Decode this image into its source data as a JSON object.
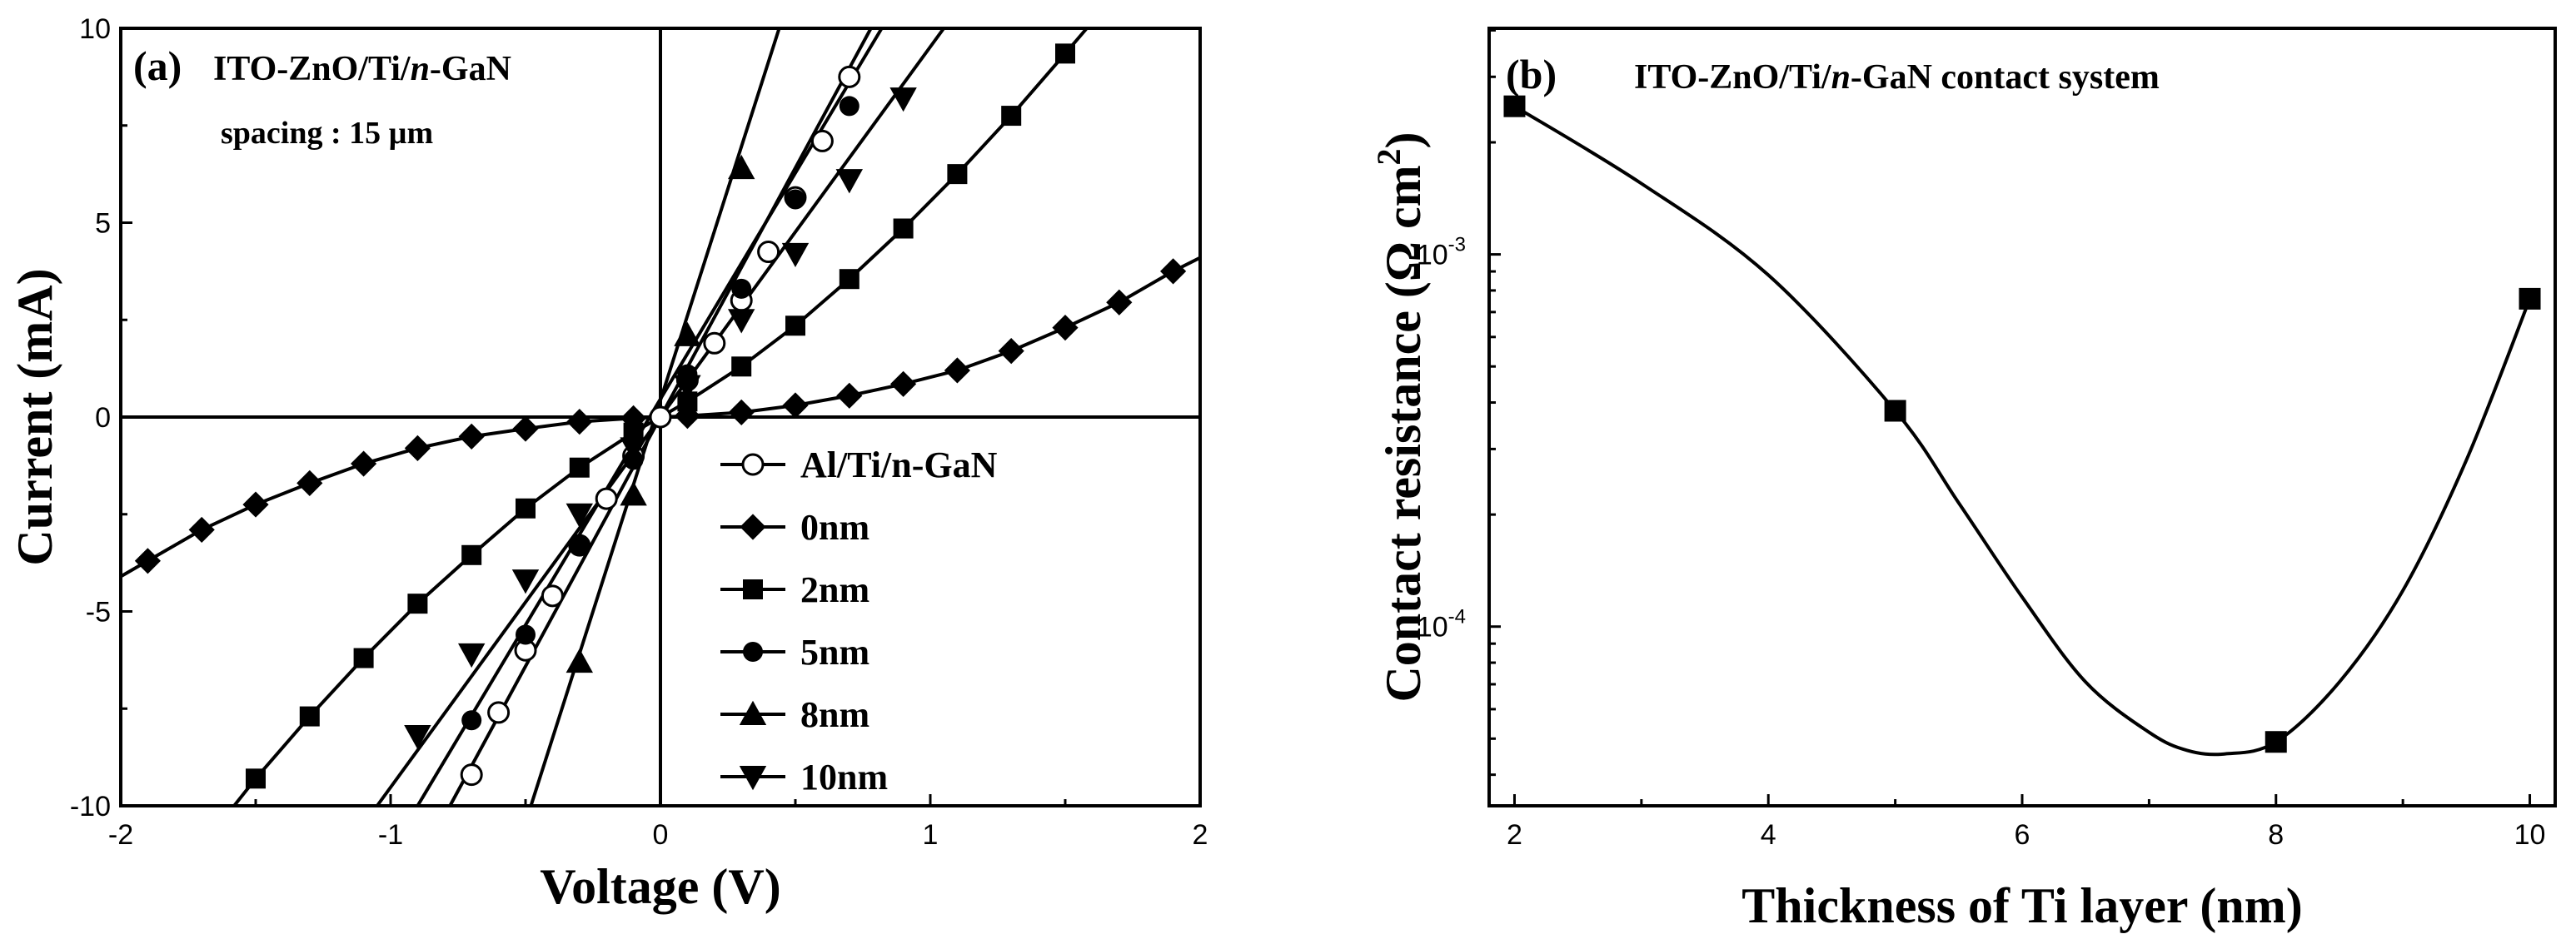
{
  "chart_data": [
    {
      "type": "line",
      "panel_label": "(a)",
      "annotation": {
        "line1_prefix": "ITO-ZnO/Ti/",
        "line1_italic": "n",
        "line1_suffix": "-GaN",
        "line2": "spacing : 15 µm"
      },
      "xlabel": "Voltage (V)",
      "ylabel": "Current (mA)",
      "xlim": [
        -2,
        2
      ],
      "ylim": [
        -10,
        10
      ],
      "xticks": [
        -2,
        -1,
        0,
        1,
        2
      ],
      "yticks": [
        -10,
        -5,
        0,
        5,
        10
      ],
      "xtick_labels": [
        "-2",
        "-1",
        "0",
        "1",
        "2"
      ],
      "ytick_labels": [
        "-10",
        "-5",
        "0",
        "5",
        "10"
      ],
      "legend_position": "bottom-right",
      "series": [
        {
          "name": "Al/Ti/n-GaN",
          "marker": "open-circle",
          "x": [
            -0.7,
            -0.6,
            -0.5,
            -0.4,
            -0.3,
            -0.2,
            -0.1,
            0.0,
            0.1,
            0.2,
            0.3,
            0.4,
            0.5,
            0.6,
            0.7
          ],
          "y": [
            -9.2,
            -7.6,
            -6.0,
            -4.6,
            -3.3,
            -2.1,
            -1.0,
            0.0,
            0.95,
            1.9,
            3.0,
            4.25,
            5.65,
            7.1,
            8.75
          ],
          "line_x": [
            -0.78,
            0.78
          ],
          "line_y": [
            -10,
            10
          ]
        },
        {
          "name": "0nm",
          "marker": "diamond",
          "x": [
            -1.9,
            -1.7,
            -1.5,
            -1.3,
            -1.1,
            -0.9,
            -0.7,
            -0.5,
            -0.3,
            -0.1,
            0.1,
            0.3,
            0.5,
            0.7,
            0.9,
            1.1,
            1.3,
            1.5,
            1.7,
            1.9
          ],
          "y": [
            -3.7,
            -2.9,
            -2.25,
            -1.7,
            -1.2,
            -0.8,
            -0.5,
            -0.3,
            -0.12,
            -0.03,
            0.03,
            0.12,
            0.3,
            0.55,
            0.85,
            1.2,
            1.7,
            2.3,
            2.95,
            3.75
          ],
          "line_x": [
            -2.0,
            -1.9,
            -1.7,
            -1.5,
            -1.3,
            -1.1,
            -0.9,
            -0.7,
            -0.5,
            -0.3,
            -0.1,
            0.1,
            0.3,
            0.5,
            0.7,
            0.9,
            1.1,
            1.3,
            1.5,
            1.7,
            1.9,
            2.0
          ],
          "line_y": [
            -4.1,
            -3.7,
            -2.9,
            -2.25,
            -1.7,
            -1.2,
            -0.8,
            -0.5,
            -0.3,
            -0.12,
            -0.03,
            0.03,
            0.12,
            0.3,
            0.55,
            0.85,
            1.2,
            1.7,
            2.3,
            2.95,
            3.75,
            4.1
          ]
        },
        {
          "name": "2nm",
          "marker": "square",
          "x": [
            -1.5,
            -1.3,
            -1.1,
            -0.9,
            -0.7,
            -0.5,
            -0.3,
            -0.1,
            0.1,
            0.3,
            0.5,
            0.7,
            0.9,
            1.1,
            1.3,
            1.5
          ],
          "y": [
            -9.3,
            -7.7,
            -6.2,
            -4.8,
            -3.55,
            -2.35,
            -1.3,
            -0.4,
            0.4,
            1.3,
            2.35,
            3.55,
            4.85,
            6.25,
            7.75,
            9.35
          ],
          "line_x": [
            -1.58,
            -1.5,
            -1.3,
            -1.1,
            -0.9,
            -0.7,
            -0.5,
            -0.3,
            -0.1,
            0.1,
            0.3,
            0.5,
            0.7,
            0.9,
            1.1,
            1.3,
            1.5,
            1.58
          ],
          "line_y": [
            -10,
            -9.3,
            -7.7,
            -6.2,
            -4.8,
            -3.55,
            -2.35,
            -1.3,
            -0.4,
            0.4,
            1.3,
            2.35,
            3.55,
            4.85,
            6.25,
            7.75,
            9.35,
            10
          ]
        },
        {
          "name": "5nm",
          "marker": "filled-circle",
          "x": [
            -0.7,
            -0.5,
            -0.3,
            -0.1,
            0.1,
            0.3,
            0.5,
            0.7
          ],
          "y": [
            -7.8,
            -5.6,
            -3.3,
            -1.1,
            1.1,
            3.3,
            5.6,
            8.0
          ],
          "line_x": [
            -0.9,
            0.82
          ],
          "line_y": [
            -10,
            10
          ]
        },
        {
          "name": "8nm",
          "marker": "triangle-up",
          "x": [
            -0.3,
            -0.1,
            0.1,
            0.3
          ],
          "y": [
            -6.3,
            -2.0,
            2.1,
            6.4
          ],
          "line_x": [
            -0.48,
            0.44
          ],
          "line_y": [
            -10,
            10
          ]
        },
        {
          "name": "10nm",
          "marker": "triangle-down",
          "x": [
            -0.9,
            -0.7,
            -0.5,
            -0.3,
            -0.1,
            0.1,
            0.3,
            0.5,
            0.7,
            0.9
          ],
          "y": [
            -8.2,
            -6.1,
            -4.2,
            -2.5,
            -0.8,
            0.8,
            2.5,
            4.2,
            6.1,
            8.2
          ],
          "line_x": [
            -1.05,
            1.05
          ],
          "line_y": [
            -10,
            10
          ]
        }
      ]
    },
    {
      "type": "line",
      "panel_label": "(b)",
      "title_prefix": "ITO-ZnO/Ti/",
      "title_italic": "n",
      "title_suffix": "-GaN contact system",
      "xlabel": "Thickness of Ti layer (nm)",
      "ylabel": "Contact resistance (Ω cm",
      "ylabel_sup": "2",
      "ylabel_close": ")",
      "xlim": [
        1.8,
        10.2
      ],
      "yscale": "log",
      "ylim": [
        3.3e-05,
        0.00405
      ],
      "xticks": [
        2,
        4,
        6,
        8,
        10
      ],
      "xtick_labels": [
        "2",
        "4",
        "6",
        "8",
        "10"
      ],
      "yticks": [
        0.0001,
        0.001
      ],
      "ytick_labels": [
        {
          "base": "10",
          "exp": "-4"
        },
        {
          "base": "10",
          "exp": "-3"
        }
      ],
      "series": [
        {
          "name": "Contact resistance",
          "marker": "square",
          "x": [
            2,
            5,
            8,
            10
          ],
          "y": [
            0.0025,
            0.00038,
            4.9e-05,
            0.00076
          ],
          "curve_x": [
            2,
            3,
            4,
            5,
            5.5,
            6,
            6.5,
            7,
            7.3,
            7.6,
            8,
            8.5,
            9,
            9.5,
            10
          ],
          "curve_y": [
            0.0025,
            0.00155,
            0.00088,
            0.00038,
            0.000215,
            0.00012,
            7.1e-05,
            5.2e-05,
            4.65e-05,
            4.55e-05,
            4.9e-05,
            7.1e-05,
            0.000125,
            0.00028,
            0.00076
          ]
        }
      ]
    }
  ]
}
